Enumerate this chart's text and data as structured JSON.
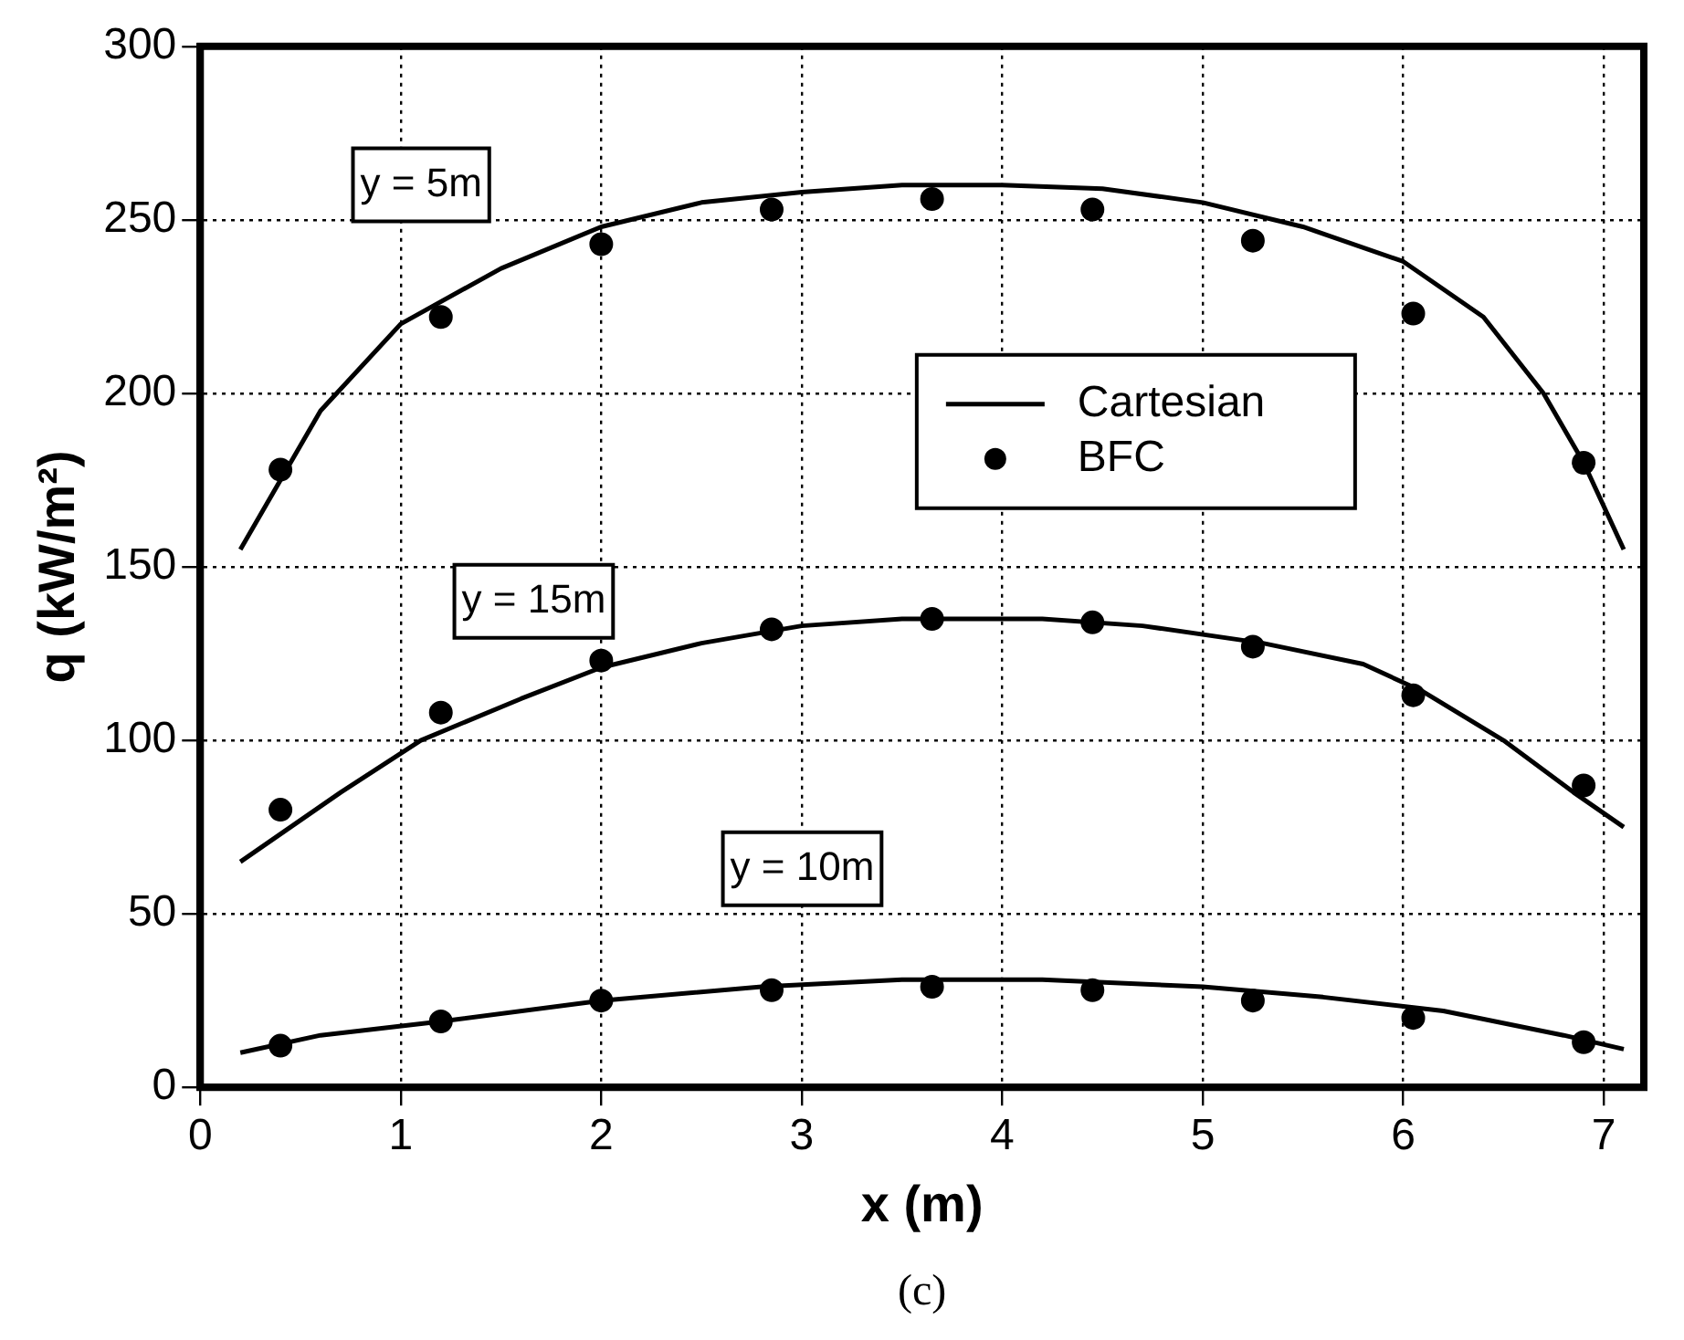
{
  "chart_data": {
    "type": "line",
    "xlabel": "x (m)",
    "ylabel": "q (kW/m²)",
    "xlim": [
      0,
      7.2
    ],
    "xticks": [
      0,
      1,
      2,
      3,
      4,
      5,
      6,
      7
    ],
    "ylim": [
      0,
      300
    ],
    "yticks": [
      0,
      50,
      100,
      150,
      200,
      250,
      300
    ],
    "grid": true,
    "legend": "right",
    "series": [
      {
        "name": "Cartesian",
        "color": "#000000",
        "marker": "none",
        "line_style": "solid",
        "x": [
          0.2,
          0.6,
          1.0,
          1.5,
          2.0,
          2.5,
          3.0,
          3.5,
          4.0,
          4.5,
          5.0,
          5.5,
          6.0,
          6.4,
          6.7,
          6.9,
          7.1
        ],
        "values": [
          155,
          195,
          220,
          236,
          248,
          255,
          258,
          260,
          260,
          259,
          255,
          248,
          238,
          222,
          200,
          180,
          155
        ]
      },
      {
        "name": "BFC",
        "type": "scatter",
        "color": "#000000",
        "marker": "circle",
        "x": [
          0.4,
          1.2,
          2.0,
          2.85,
          3.65,
          4.45,
          5.25,
          6.05,
          6.9
        ],
        "values": [
          178,
          222,
          243,
          253,
          256,
          253,
          244,
          223,
          180
        ]
      },
      {
        "color": "#000000",
        "marker": "none",
        "line_style": "solid",
        "x": [
          0.2,
          0.7,
          1.1,
          1.6,
          2.0,
          2.5,
          3.0,
          3.5,
          4.2,
          4.7,
          5.3,
          5.8,
          6.1,
          6.5,
          6.85,
          7.1
        ],
        "values": [
          65,
          85,
          100,
          112,
          121,
          128,
          133,
          135,
          135,
          133,
          128,
          122,
          114,
          100,
          85,
          75
        ]
      },
      {
        "type": "scatter",
        "color": "#000000",
        "marker": "circle",
        "x": [
          0.4,
          1.2,
          2.0,
          2.85,
          3.65,
          4.45,
          5.25,
          6.05,
          6.9
        ],
        "values": [
          80,
          108,
          123,
          132,
          135,
          134,
          127,
          113,
          87
        ]
      },
      {
        "color": "#000000",
        "marker": "none",
        "line_style": "solid",
        "x": [
          0.2,
          0.6,
          1.2,
          2.0,
          2.8,
          3.5,
          4.2,
          5.0,
          5.6,
          6.2,
          6.8,
          7.1
        ],
        "values": [
          10,
          15,
          19,
          25,
          29,
          31,
          31,
          29,
          26,
          22,
          15,
          11
        ]
      },
      {
        "type": "scatter",
        "color": "#000000",
        "marker": "circle",
        "x": [
          0.4,
          1.2,
          2.0,
          2.85,
          3.65,
          4.45,
          5.25,
          6.05,
          6.9
        ],
        "values": [
          12,
          19,
          25,
          28,
          29,
          28,
          25,
          20,
          13
        ]
      }
    ],
    "annotations": [
      "y = 5m",
      "y = 15m",
      "y = 10m",
      "(c)"
    ]
  }
}
